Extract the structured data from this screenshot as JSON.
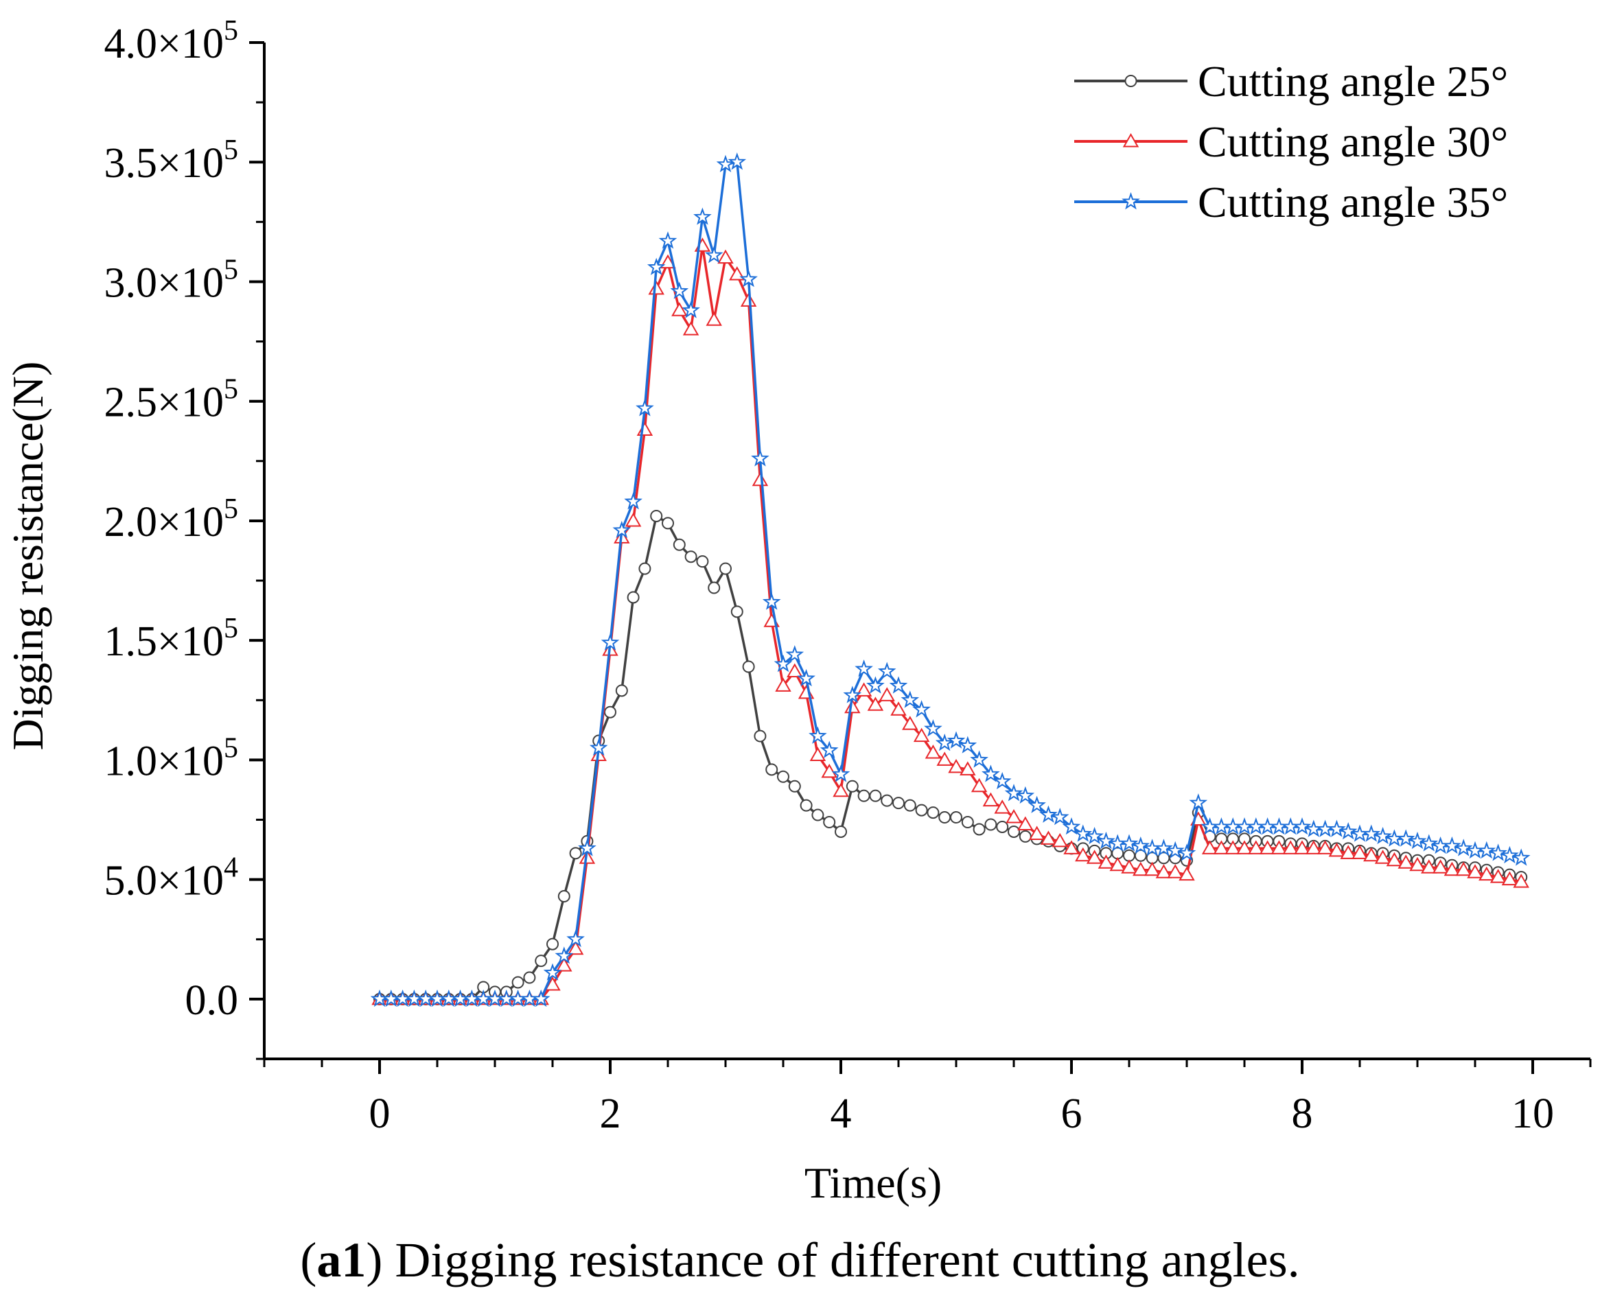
{
  "chart_data": {
    "type": "line",
    "title": "",
    "xlabel": "Time(s)",
    "ylabel": "Digging resistance(N)",
    "xlim": [
      -1,
      10.5
    ],
    "ylim": [
      -25000,
      400000
    ],
    "x_ticks": [
      0,
      2,
      4,
      6,
      8,
      10
    ],
    "x_tick_labels": [
      "0",
      "2",
      "4",
      "6",
      "8",
      "10"
    ],
    "y_ticks": [
      {
        "value": 0,
        "mantissa": "0.0",
        "exponent": ""
      },
      {
        "value": 50000,
        "mantissa": "5.0×10",
        "exponent": "4"
      },
      {
        "value": 100000,
        "mantissa": "1.0×10",
        "exponent": "5"
      },
      {
        "value": 150000,
        "mantissa": "1.5×10",
        "exponent": "5"
      },
      {
        "value": 200000,
        "mantissa": "2.0×10",
        "exponent": "5"
      },
      {
        "value": 250000,
        "mantissa": "2.5×10",
        "exponent": "5"
      },
      {
        "value": 300000,
        "mantissa": "3.0×10",
        "exponent": "5"
      },
      {
        "value": 350000,
        "mantissa": "3.5×10",
        "exponent": "5"
      },
      {
        "value": 400000,
        "mantissa": "4.0×10",
        "exponent": "5"
      }
    ],
    "legend_position": "top-right",
    "x": [
      0,
      0.1,
      0.2,
      0.3,
      0.4,
      0.5,
      0.6,
      0.7,
      0.8,
      0.9,
      1.0,
      1.1,
      1.2,
      1.3,
      1.4,
      1.5,
      1.6,
      1.7,
      1.8,
      1.9,
      2.0,
      2.1,
      2.2,
      2.3,
      2.4,
      2.5,
      2.6,
      2.7,
      2.8,
      2.9,
      3.0,
      3.1,
      3.2,
      3.3,
      3.4,
      3.5,
      3.6,
      3.7,
      3.8,
      3.9,
      4.0,
      4.1,
      4.2,
      4.3,
      4.4,
      4.5,
      4.6,
      4.7,
      4.8,
      4.9,
      5.0,
      5.1,
      5.2,
      5.3,
      5.4,
      5.5,
      5.6,
      5.7,
      5.8,
      5.9,
      6.0,
      6.1,
      6.2,
      6.3,
      6.4,
      6.5,
      6.6,
      6.7,
      6.8,
      6.9,
      7.0,
      7.1,
      7.2,
      7.3,
      7.4,
      7.5,
      7.6,
      7.7,
      7.8,
      7.9,
      8.0,
      8.1,
      8.2,
      8.3,
      8.4,
      8.5,
      8.6,
      8.7,
      8.8,
      8.9,
      9.0,
      9.1,
      9.2,
      9.3,
      9.4,
      9.5,
      9.6,
      9.7,
      9.8,
      9.9
    ],
    "series": [
      {
        "name": "Cutting angle 25°",
        "color": "#404040",
        "marker": "circle",
        "values": [
          0,
          0,
          0,
          0,
          0,
          0,
          0,
          0,
          0,
          5000,
          3000,
          3000,
          7000,
          9000,
          16000,
          23000,
          43000,
          61000,
          66000,
          108000,
          120000,
          129000,
          168000,
          180000,
          202000,
          199000,
          190000,
          185000,
          183000,
          172000,
          180000,
          162000,
          139000,
          110000,
          96000,
          93000,
          89000,
          81000,
          77000,
          74000,
          70000,
          89000,
          85000,
          85000,
          83000,
          82000,
          81000,
          79000,
          78000,
          76000,
          76000,
          74000,
          71000,
          73000,
          72000,
          70000,
          68000,
          67000,
          66000,
          64000,
          63000,
          63000,
          62000,
          61000,
          61000,
          60000,
          60000,
          59000,
          59000,
          59000,
          58000,
          78000,
          68000,
          67000,
          67000,
          67000,
          66000,
          66000,
          66000,
          65000,
          65000,
          64000,
          64000,
          63000,
          63000,
          62000,
          61000,
          61000,
          60000,
          59000,
          58000,
          58000,
          57000,
          56000,
          55000,
          55000,
          54000,
          53000,
          52000,
          51000
        ]
      },
      {
        "name": "Cutting angle 30°",
        "color": "#e8262a",
        "marker": "triangle",
        "values": [
          0,
          0,
          0,
          0,
          0,
          0,
          0,
          0,
          0,
          0,
          0,
          0,
          0,
          0,
          0,
          6000,
          14000,
          21000,
          59000,
          102000,
          146000,
          193000,
          200000,
          238000,
          297000,
          308000,
          288000,
          280000,
          315000,
          284000,
          310000,
          303000,
          292000,
          217000,
          158000,
          131000,
          137000,
          128000,
          102000,
          95000,
          87000,
          122000,
          129000,
          123000,
          127000,
          121000,
          115000,
          110000,
          103000,
          100000,
          97000,
          96000,
          89000,
          83000,
          80000,
          76000,
          73000,
          69000,
          67000,
          66000,
          63000,
          60000,
          59000,
          57000,
          56000,
          55000,
          54000,
          54000,
          53000,
          53000,
          52000,
          75000,
          63000,
          63000,
          63000,
          63000,
          63000,
          63000,
          63000,
          63000,
          63000,
          63000,
          63000,
          62000,
          61000,
          61000,
          60000,
          59000,
          58000,
          57000,
          56000,
          55000,
          55000,
          54000,
          54000,
          53000,
          52000,
          51000,
          50000,
          49000
        ]
      },
      {
        "name": "Cutting angle 35°",
        "color": "#1c6ed8",
        "marker": "star",
        "values": [
          0,
          0,
          0,
          0,
          0,
          0,
          0,
          0,
          0,
          0,
          0,
          0,
          0,
          0,
          0,
          11000,
          18000,
          25000,
          63000,
          105000,
          149000,
          196000,
          208000,
          247000,
          306000,
          317000,
          296000,
          288000,
          327000,
          311000,
          349000,
          350000,
          301000,
          226000,
          166000,
          140000,
          144000,
          134000,
          110000,
          104000,
          94000,
          127000,
          138000,
          131000,
          137000,
          131000,
          125000,
          121000,
          113000,
          107000,
          108000,
          106000,
          100000,
          94000,
          91000,
          86000,
          85000,
          81000,
          77000,
          76000,
          72000,
          69000,
          68000,
          66000,
          65000,
          65000,
          64000,
          63000,
          63000,
          62000,
          61000,
          82000,
          72000,
          72000,
          72000,
          72000,
          72000,
          72000,
          72000,
          72000,
          72000,
          71000,
          71000,
          71000,
          70000,
          69000,
          69000,
          68000,
          67000,
          67000,
          66000,
          65000,
          64000,
          64000,
          63000,
          62000,
          62000,
          61000,
          60000,
          59000
        ]
      }
    ]
  },
  "caption": {
    "bold_prefix": "a1",
    "open_paren": "(",
    "close_paren": ")",
    "text": " Digging resistance of different cutting angles."
  }
}
